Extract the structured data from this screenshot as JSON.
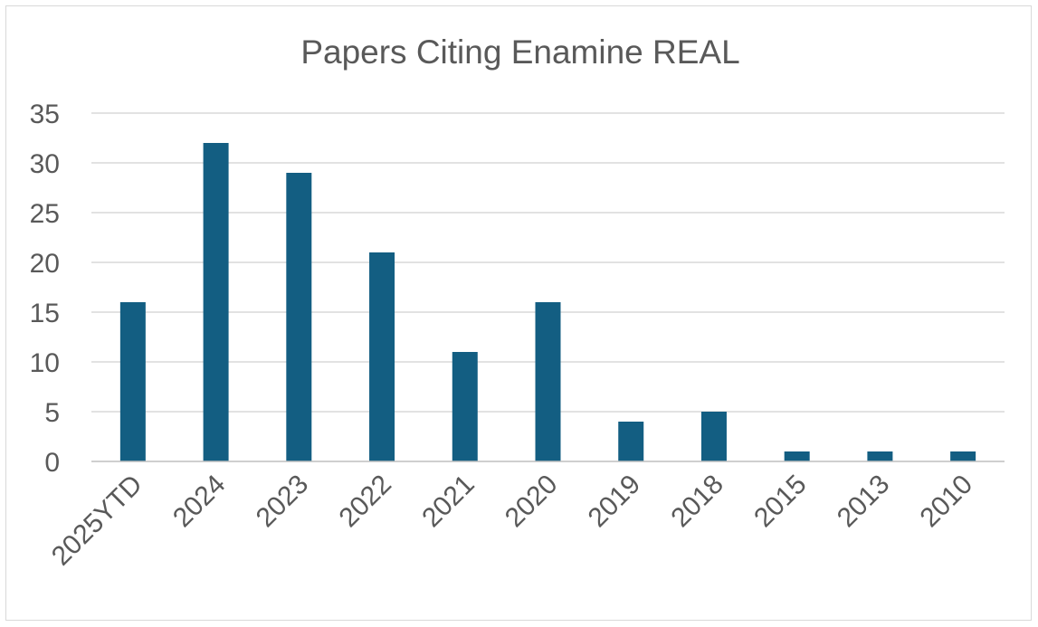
{
  "chart_data": {
    "type": "bar",
    "title": "Papers Citing Enamine REAL",
    "xlabel": "",
    "ylabel": "",
    "categories": [
      "2025YTD",
      "2024",
      "2023",
      "2022",
      "2021",
      "2020",
      "2019",
      "2018",
      "2015",
      "2013",
      "2010"
    ],
    "values": [
      16,
      32,
      29,
      21,
      11,
      16,
      4,
      5,
      1,
      1,
      1
    ],
    "ylim": [
      0,
      35
    ],
    "yticks": [
      0,
      5,
      10,
      15,
      20,
      25,
      30,
      35
    ],
    "grid": true,
    "legend": "none",
    "bar_color": "#135e82"
  }
}
